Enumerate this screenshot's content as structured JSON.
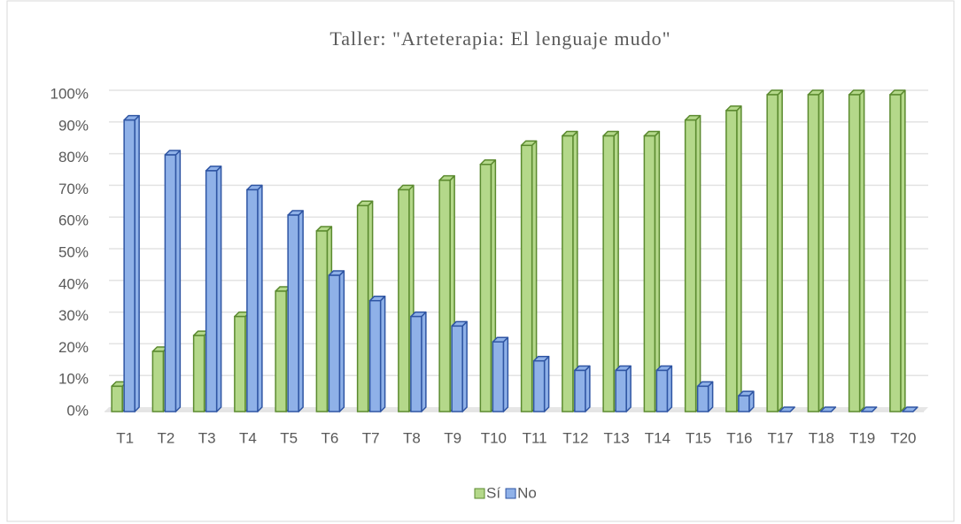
{
  "chart_data": {
    "type": "bar3d",
    "title": "Taller: \"Arteterapia: El lenguaje mudo\"",
    "categories": [
      "T1",
      "T2",
      "T3",
      "T4",
      "T5",
      "T6",
      "T7",
      "T8",
      "T9",
      "T10",
      "T11",
      "T12",
      "T13",
      "T14",
      "T15",
      "T16",
      "T17",
      "T18",
      "T19",
      "T20"
    ],
    "series": [
      {
        "name": "Sí",
        "color": "#b4d88a",
        "edge": "#5b8a2f",
        "values": [
          8,
          19,
          24,
          30,
          38,
          57,
          65,
          70,
          73,
          78,
          84,
          87,
          87,
          87,
          92,
          95,
          100,
          100,
          100,
          100
        ]
      },
      {
        "name": "No",
        "color": "#8fb1e8",
        "edge": "#2f55a3",
        "values": [
          92,
          81,
          76,
          70,
          62,
          43,
          35,
          30,
          27,
          22,
          16,
          13,
          13,
          13,
          8,
          5,
          0,
          0,
          0,
          0
        ]
      }
    ],
    "ylim": [
      0,
      100
    ],
    "yticks": [
      {
        "value": 0,
        "label": "0%"
      },
      {
        "value": 10,
        "label": "10%"
      },
      {
        "value": 20,
        "label": "20%"
      },
      {
        "value": 30,
        "label": "30%"
      },
      {
        "value": 40,
        "label": "40%"
      },
      {
        "value": 50,
        "label": "50%"
      },
      {
        "value": 60,
        "label": "60%"
      },
      {
        "value": 70,
        "label": "70%"
      },
      {
        "value": 80,
        "label": "80%"
      },
      {
        "value": 90,
        "label": "90%"
      },
      {
        "value": 100,
        "label": "100%"
      }
    ],
    "grid": true,
    "legend": "bottom"
  }
}
